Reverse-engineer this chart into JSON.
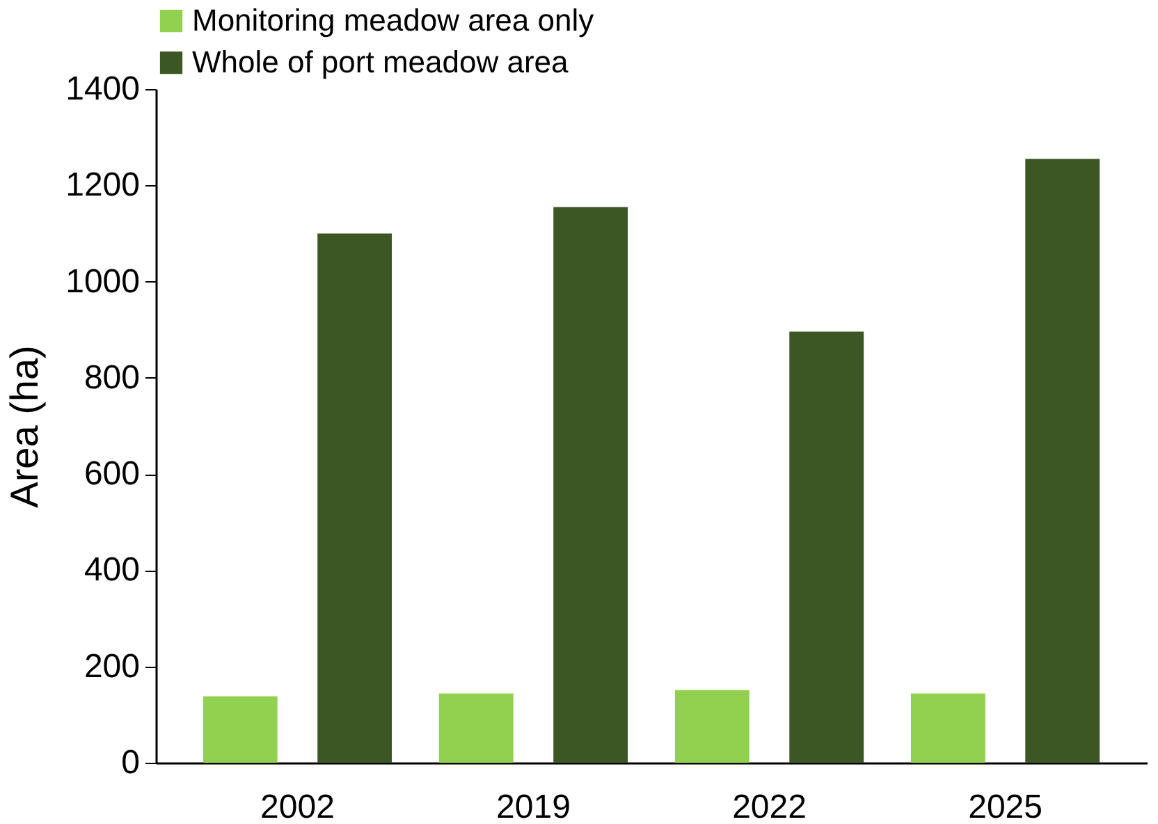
{
  "chart_data": {
    "type": "bar",
    "ylabel": "Area (ha)",
    "categories": [
      "2002",
      "2019",
      "2022",
      "2025"
    ],
    "series": [
      {
        "name": "Monitoring meadow area only",
        "color": "#92d050",
        "values": [
          138,
          144,
          151,
          144
        ]
      },
      {
        "name": "Whole of port meadow area",
        "color": "#3c5724",
        "values": [
          1100,
          1155,
          896,
          1255
        ]
      }
    ],
    "ylim": [
      0,
      1400
    ],
    "yticks": [
      0,
      200,
      400,
      600,
      800,
      1000,
      1200,
      1400
    ],
    "grid": false,
    "legend": "top"
  }
}
